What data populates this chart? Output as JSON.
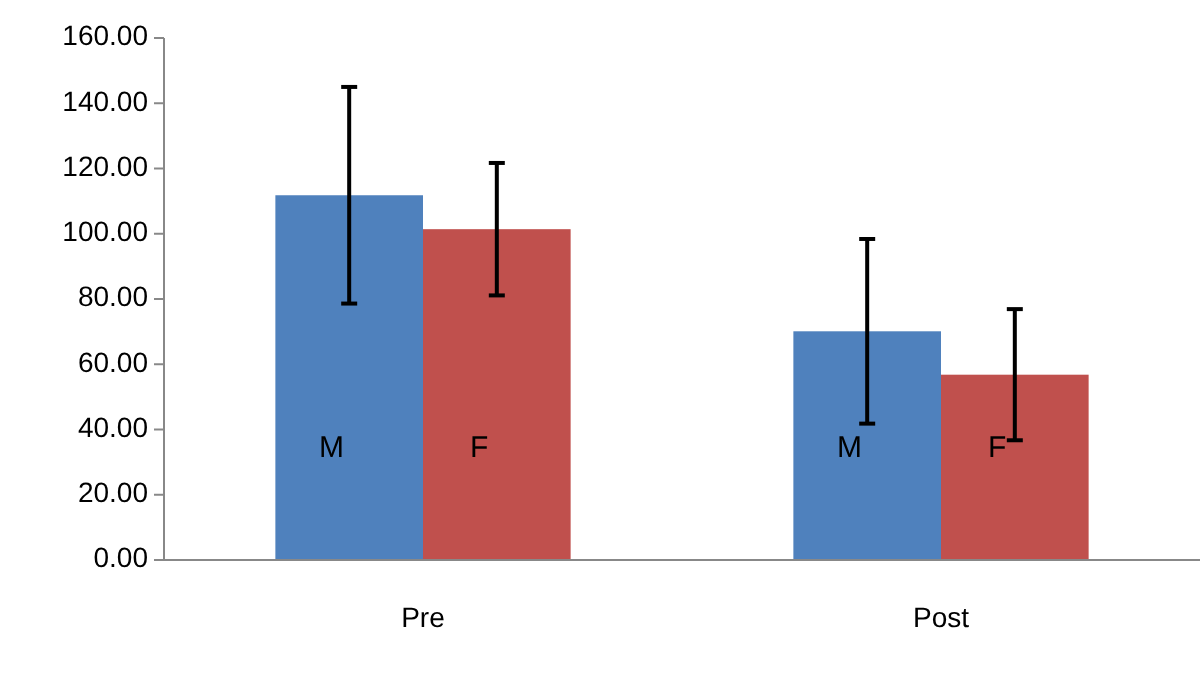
{
  "chart_data": {
    "type": "bar",
    "categories": [
      "Pre",
      "Post"
    ],
    "series": [
      {
        "name": "M",
        "color": "#4f81bd",
        "values": [
          111.8,
          70.1
        ],
        "errors": [
          33.2,
          28.3
        ]
      },
      {
        "name": "F",
        "color": "#c0504d",
        "values": [
          101.4,
          56.8
        ],
        "errors": [
          20.3,
          20.1
        ]
      }
    ],
    "ylim": [
      0,
      160
    ],
    "yticks": [
      {
        "value": 0,
        "label": "0.00"
      },
      {
        "value": 20,
        "label": "20.00"
      },
      {
        "value": 40,
        "label": "40.00"
      },
      {
        "value": 60,
        "label": "60.00"
      },
      {
        "value": 80,
        "label": "80.00"
      },
      {
        "value": 100,
        "label": "100.00"
      },
      {
        "value": 120,
        "label": "120.00"
      },
      {
        "value": 140,
        "label": "140.00"
      },
      {
        "value": 160,
        "label": "160.00"
      }
    ],
    "grid": false,
    "legend": false
  }
}
